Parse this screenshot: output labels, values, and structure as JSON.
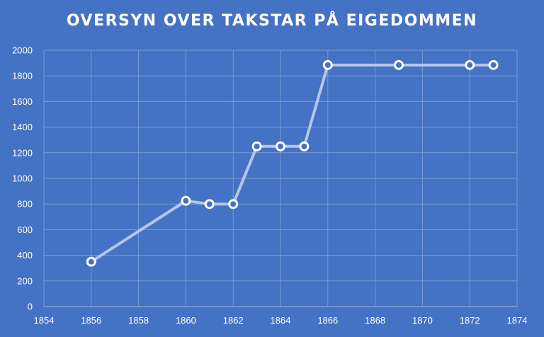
{
  "chart_data": {
    "type": "line",
    "title": "OVERSYN OVER TAKSTAR PÅ EIGEDOMMEN",
    "xlabel": "",
    "ylabel": "",
    "xlim": [
      1854,
      1874
    ],
    "ylim": [
      0,
      2000
    ],
    "xticks": [
      1854,
      1856,
      1858,
      1860,
      1862,
      1864,
      1866,
      1868,
      1870,
      1872,
      1874
    ],
    "yticks": [
      0,
      200,
      400,
      600,
      800,
      1000,
      1200,
      1400,
      1600,
      1800,
      2000
    ],
    "grid": true,
    "legend": "none",
    "series": [
      {
        "x": [
          1856,
          1860,
          1861,
          1862,
          1863,
          1864,
          1865,
          1866,
          1869,
          1872,
          1873
        ],
        "y": [
          350,
          825,
          800,
          800,
          1250,
          1250,
          1250,
          1885,
          1885,
          1885,
          1885
        ],
        "line_color": "#b4c7e7",
        "marker_edge_color": "#ffffff"
      }
    ],
    "background_color": "#4472c4",
    "grid_color": "#7a9bd6"
  }
}
